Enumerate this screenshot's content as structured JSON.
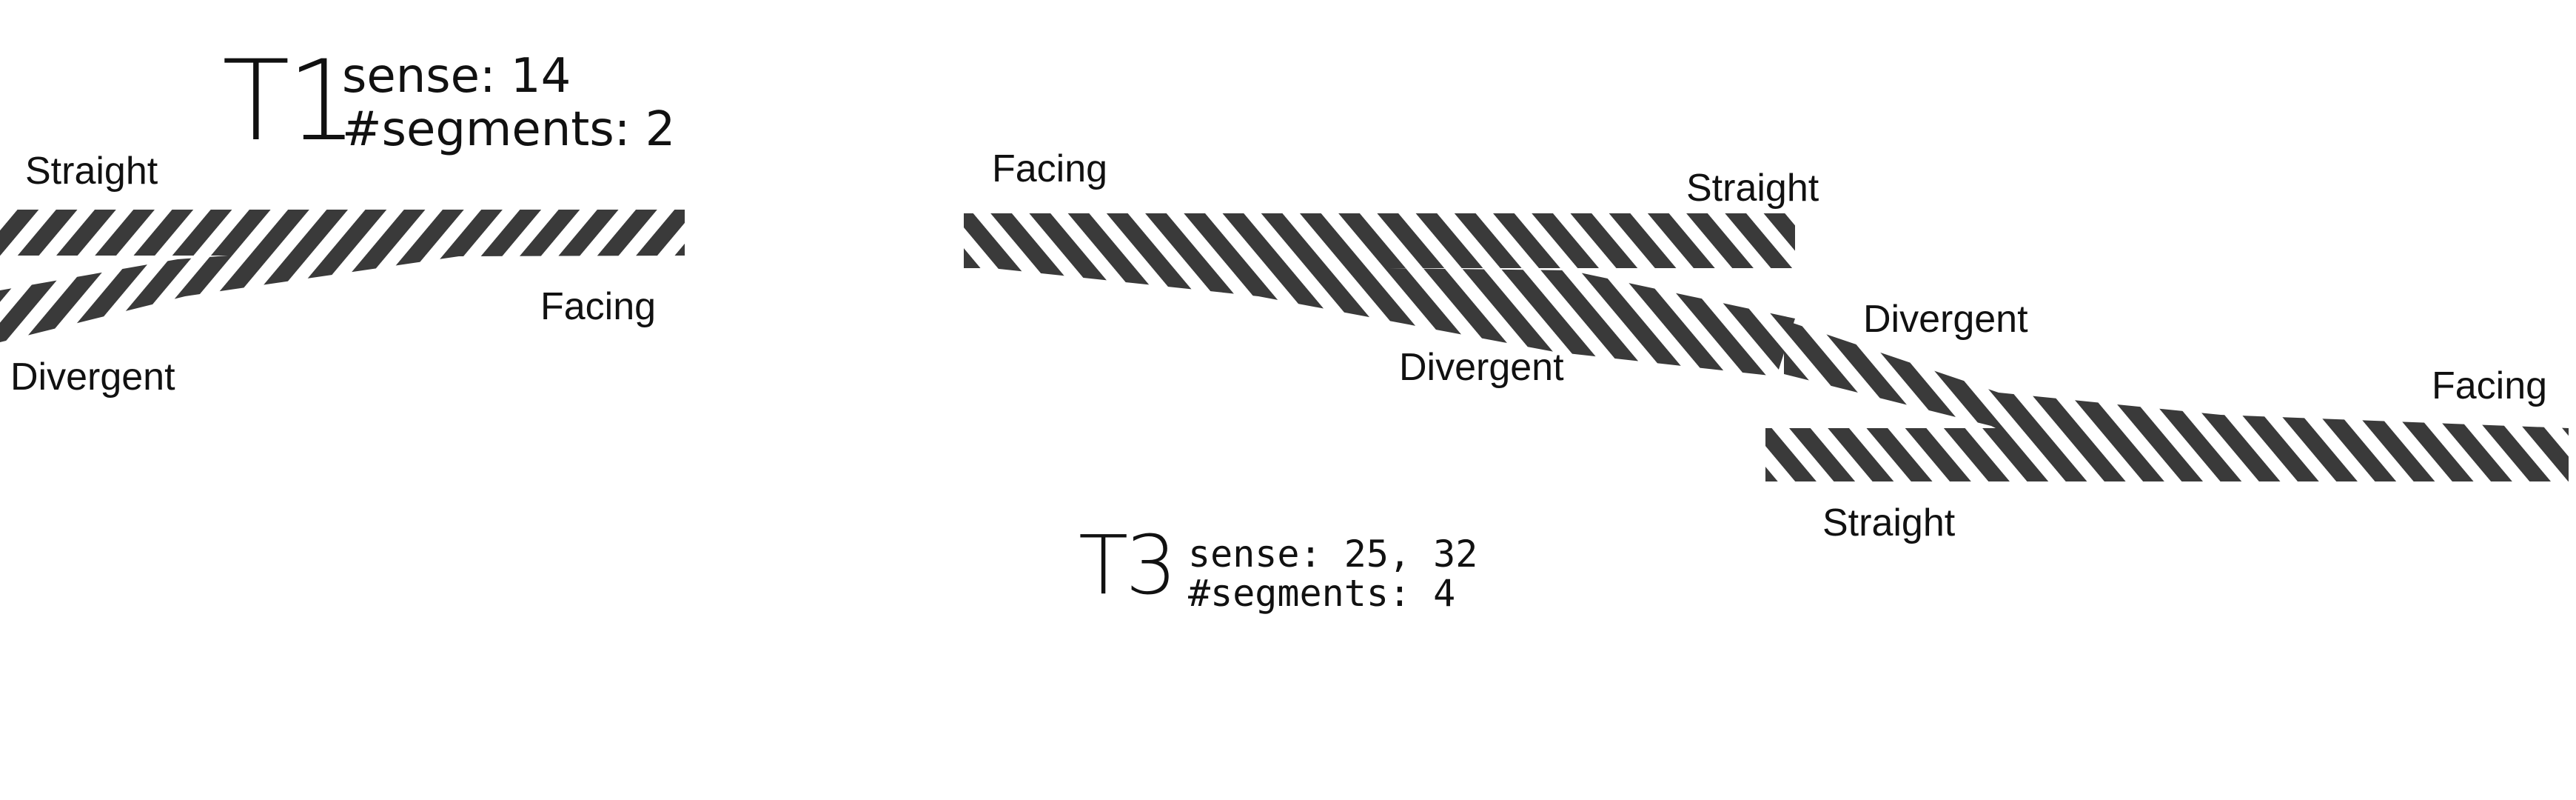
{
  "t1": {
    "title": "T1",
    "sense": "sense: 14",
    "segments": "#segments: 2",
    "labels": {
      "straight": "Straight",
      "facing": "Facing",
      "divergent": "Divergent"
    }
  },
  "t3": {
    "title": "T3",
    "sense": "sense: 25, 32",
    "segments": "#segments: 4",
    "labels": {
      "facing_left": "Facing",
      "straight_top": "Straight",
      "divergent_left": "Divergent",
      "divergent_right": "Divergent",
      "facing_right": "Facing",
      "straight_bottom": "Straight"
    }
  },
  "colors": {
    "stripe": "#3a3a3a",
    "background": "#ffffff",
    "text": "#111111"
  }
}
